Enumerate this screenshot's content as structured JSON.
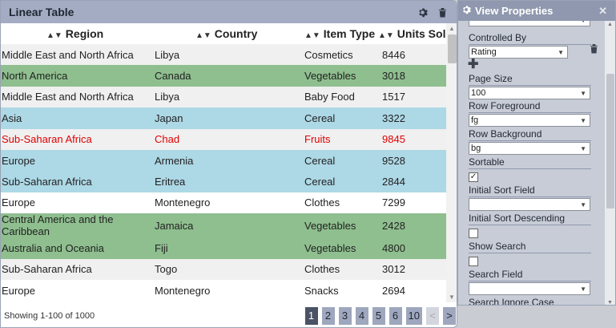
{
  "table": {
    "title": "Linear Table",
    "columns": [
      "Region",
      "Country",
      "Item Type",
      "Units Sold"
    ],
    "rows": [
      {
        "cells": [
          "Middle East and North Africa",
          "Libya",
          "Cosmetics",
          "8446"
        ],
        "bg": "#f0f0f0",
        "fg": "#222222"
      },
      {
        "cells": [
          "North America",
          "Canada",
          "Vegetables",
          "3018"
        ],
        "bg": "#8fbf8f",
        "fg": "#222222"
      },
      {
        "cells": [
          "Middle East and North Africa",
          "Libya",
          "Baby Food",
          "1517"
        ],
        "bg": "#f0f0f0",
        "fg": "#222222"
      },
      {
        "cells": [
          "Asia",
          "Japan",
          "Cereal",
          "3322"
        ],
        "bg": "#add8e6",
        "fg": "#222222"
      },
      {
        "cells": [
          "Sub-Saharan Africa",
          "Chad",
          "Fruits",
          "9845"
        ],
        "bg": "#f0f0f0",
        "fg": "#e00000"
      },
      {
        "cells": [
          "Europe",
          "Armenia",
          "Cereal",
          "9528"
        ],
        "bg": "#add8e6",
        "fg": "#222222"
      },
      {
        "cells": [
          "Sub-Saharan Africa",
          "Eritrea",
          "Cereal",
          "2844"
        ],
        "bg": "#add8e6",
        "fg": "#222222"
      },
      {
        "cells": [
          "Europe",
          "Montenegro",
          "Clothes",
          "7299"
        ],
        "bg": "#ffffff",
        "fg": "#222222"
      },
      {
        "cells": [
          "Central America and the Caribbean",
          "Jamaica",
          "Vegetables",
          "2428"
        ],
        "bg": "#8fbf8f",
        "fg": "#222222",
        "tall": true
      },
      {
        "cells": [
          "Australia and Oceania",
          "Fiji",
          "Vegetables",
          "4800"
        ],
        "bg": "#8fbf8f",
        "fg": "#222222"
      },
      {
        "cells": [
          "Sub-Saharan Africa",
          "Togo",
          "Clothes",
          "3012"
        ],
        "bg": "#f0f0f0",
        "fg": "#222222"
      },
      {
        "cells": [
          "Europe",
          "Montenegro",
          "Snacks",
          "2694"
        ],
        "bg": "#ffffff",
        "fg": "#222222"
      }
    ],
    "showing": "Showing 1-100 of 1000",
    "pages": [
      "1",
      "2",
      "3",
      "4",
      "5",
      "6",
      "10"
    ],
    "active_page": "1",
    "prev_label": "<",
    "next_label": ">"
  },
  "properties": {
    "title": "View Properties",
    "controlled_by": {
      "label": "Controlled By",
      "value": "Rating"
    },
    "page_size": {
      "label": "Page Size",
      "value": "100"
    },
    "row_foreground": {
      "label": "Row Foreground",
      "value": "fg"
    },
    "row_background": {
      "label": "Row Background",
      "value": "bg"
    },
    "sortable": {
      "label": "Sortable",
      "checked": true
    },
    "initial_sort_field": {
      "label": "Initial Sort Field",
      "value": ""
    },
    "initial_sort_descending": {
      "label": "Initial Sort Descending",
      "checked": false
    },
    "show_search": {
      "label": "Show Search",
      "checked": false
    },
    "search_field": {
      "label": "Search Field",
      "value": ""
    },
    "search_ignore_case": {
      "label": "Search Ignore Case"
    }
  },
  "icons": {
    "gear": "gear-icon",
    "trash": "trash-icon",
    "close": "close-icon",
    "plus": "plus-icon",
    "sort": "sort-icon"
  },
  "colors": {
    "header_bg": "#a3acc3",
    "active_page": "#4a5266",
    "page_button": "#9ea7bd"
  }
}
